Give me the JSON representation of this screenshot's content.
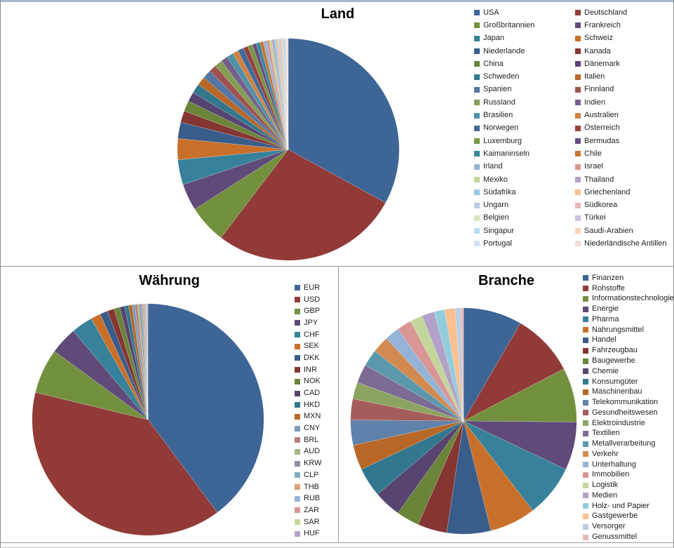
{
  "frame": {
    "background": "#FFFFFF",
    "top_edge_color": "#A8B9CD",
    "border_color": "#8C8C8C",
    "divider_color": "#9A9A9A"
  },
  "chart_data": [
    {
      "id": "land",
      "type": "pie",
      "title": "Land",
      "legend_position": "right",
      "legend_columns": 2,
      "start_angle_deg": 0,
      "labels": [
        "USA",
        "Deutschland",
        "Großbritannien",
        "Frankreich",
        "Japan",
        "Schweiz",
        "Niederlande",
        "Kanada",
        "China",
        "Dänemark",
        "Schweden",
        "Italien",
        "Spanien",
        "Finnland",
        "Russland",
        "Indien",
        "Brasilien",
        "Australien",
        "Norwegen",
        "Österreich",
        "Luxemburg",
        "Bermudas",
        "Kaimaninseln",
        "Chile",
        "Irland",
        "Israel",
        "Mexiko",
        "Thailand",
        "Südafrika",
        "Griechenland",
        "Ungarn",
        "Südkorea",
        "Belgien",
        "Türkei",
        "Singapur",
        "Saudi-Arabien",
        "Portugal",
        "Niederländische Antillen"
      ],
      "values": [
        118,
        98,
        20,
        14,
        13,
        11,
        8.5,
        6,
        5.5,
        5,
        5,
        4.5,
        4.5,
        4,
        4,
        3.5,
        3.5,
        3,
        3,
        2.5,
        2.5,
        2,
        2,
        1.8,
        1.6,
        1.5,
        1.4,
        1.2,
        1.1,
        1,
        0.9,
        0.8,
        0.8,
        0.7,
        0.6,
        0.5,
        0.5,
        0.4
      ],
      "colors": [
        "#3D6596",
        "#913A37",
        "#73903E",
        "#5F4A7A",
        "#37829A",
        "#C8702A",
        "#385D8A",
        "#853532",
        "#6A8439",
        "#574470",
        "#32778D",
        "#B86727",
        "#5477A3",
        "#9E524F",
        "#849D55",
        "#72608A",
        "#4F91A6",
        "#CF8144",
        "#416A9B",
        "#96403D",
        "#789543",
        "#644E7E",
        "#3B87A0",
        "#CC7530",
        "#95B3D7",
        "#D99694",
        "#C3D69B",
        "#B3A2C7",
        "#92CDDC",
        "#FAC090",
        "#B9CDE5",
        "#E6B9B8",
        "#D7E4BD",
        "#CCC1DA",
        "#B7DEE8",
        "#FCD5B5",
        "#D5E0EE",
        "#F0DAD9"
      ]
    },
    {
      "id": "waehrung",
      "type": "pie",
      "title": "Währung",
      "legend_position": "right",
      "legend_columns": 1,
      "start_angle_deg": 0,
      "labels": [
        "EUR",
        "USD",
        "GBP",
        "JPY",
        "CHF",
        "SEK",
        "DKK",
        "INR",
        "NOK",
        "CAD",
        "HKD",
        "MXN",
        "CNY",
        "BRL",
        "AUD",
        "KRW",
        "CLP",
        "THB",
        "RUB",
        "ZAR",
        "SAR",
        "HUF"
      ],
      "values": [
        146,
        143,
        23,
        14,
        11,
        5,
        4,
        3.5,
        3,
        2.5,
        2,
        1.8,
        1.5,
        1.2,
        1,
        0.9,
        0.8,
        0.7,
        0.6,
        0.5,
        0.5,
        0.4
      ],
      "colors": [
        "#3D6596",
        "#913A37",
        "#73903E",
        "#5F4A7A",
        "#37829A",
        "#C8702A",
        "#385D8A",
        "#853532",
        "#6A8439",
        "#574470",
        "#32778D",
        "#B86727",
        "#819BBB",
        "#B87F7D",
        "#A4B782",
        "#9789A9",
        "#7DAEBD",
        "#DBA275",
        "#95B3D7",
        "#D99694",
        "#C3D69B",
        "#B3A2C7"
      ]
    },
    {
      "id": "branche",
      "type": "pie",
      "title": "Branche",
      "legend_position": "right",
      "legend_columns": 1,
      "start_angle_deg": 0,
      "labels": [
        "Finanzen",
        "Rohstoffe",
        "Informationstechnologie",
        "Energie",
        "Pharma",
        "Nahrungsmittel",
        "Handel",
        "Fahrzeugbau",
        "Baugewerbe",
        "Chemie",
        "Konsumgüter",
        "Maschinenbau",
        "Telekommunikation",
        "Gesundheitswesen",
        "Elektroindustrie",
        "Textilien",
        "Metallverarbeitung",
        "Verkehr",
        "Unterhaltung",
        "Immobilien",
        "Logistik",
        "Medien",
        "Holz- und Papier",
        "Gastgewerbe",
        "Versorger",
        "Genussmittel"
      ],
      "values": [
        28,
        30,
        26,
        23,
        25,
        22,
        21,
        14,
        11,
        13,
        14,
        12,
        12,
        10,
        8,
        9,
        8,
        8,
        7,
        7,
        6,
        6,
        5,
        5,
        2.5,
        1.5
      ],
      "colors": [
        "#3D6596",
        "#913A37",
        "#73903E",
        "#5F4A7A",
        "#37829A",
        "#C8702A",
        "#385D8A",
        "#853532",
        "#6A8439",
        "#574470",
        "#32778D",
        "#B86727",
        "#6081A9",
        "#A55D5B",
        "#8CA461",
        "#7C6B92",
        "#5B98AC",
        "#D28A50",
        "#95B3D7",
        "#D99694",
        "#C3D69B",
        "#B3A2C7",
        "#92CDDC",
        "#FAC090",
        "#B9CDE5",
        "#E6B9B8"
      ]
    }
  ]
}
